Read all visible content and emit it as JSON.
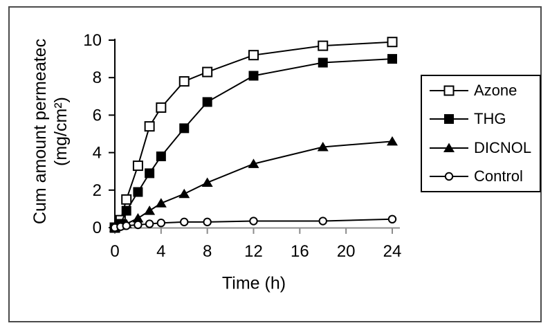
{
  "figure": {
    "border_color": "#4a4a4a",
    "background": "#ffffff"
  },
  "chart_data": {
    "type": "line",
    "title": "",
    "xlabel": "Time (h)",
    "ylabel": "Cum amount permeatec (mg/cm²)",
    "ylabel_line1": "Cum amount permeatec",
    "ylabel_line2": "(mg/cm²)",
    "xlim": [
      0,
      24
    ],
    "ylim": [
      0,
      10
    ],
    "x_ticks": [
      0,
      4,
      8,
      12,
      16,
      20,
      24
    ],
    "y_ticks": [
      0,
      2,
      4,
      6,
      8,
      10
    ],
    "grid": false,
    "legend_position": "right",
    "x": [
      0,
      0.5,
      1,
      2,
      3,
      4,
      6,
      8,
      12,
      18,
      24
    ],
    "series": [
      {
        "name": "Azone",
        "marker": "square-open",
        "color": "#000000",
        "values": [
          0,
          0.4,
          1.5,
          3.3,
          5.4,
          6.4,
          7.8,
          8.3,
          9.2,
          9.7,
          9.9
        ]
      },
      {
        "name": "THG",
        "marker": "square-filled",
        "color": "#000000",
        "values": [
          0,
          0.2,
          0.9,
          1.9,
          2.9,
          3.8,
          5.3,
          6.7,
          8.1,
          8.8,
          9.0
        ]
      },
      {
        "name": "DICNOL",
        "marker": "triangle-filled",
        "color": "#000000",
        "values": [
          0,
          0.1,
          0.2,
          0.5,
          0.9,
          1.3,
          1.8,
          2.4,
          3.4,
          4.3,
          4.6
        ]
      },
      {
        "name": "Control",
        "marker": "circle-open",
        "color": "#000000",
        "values": [
          0,
          0.05,
          0.1,
          0.15,
          0.2,
          0.25,
          0.3,
          0.3,
          0.35,
          0.35,
          0.45
        ]
      }
    ],
    "colors": {
      "series_line": "#000000",
      "y_axis": "#000000",
      "x_axis": "#8c8c8c"
    }
  }
}
